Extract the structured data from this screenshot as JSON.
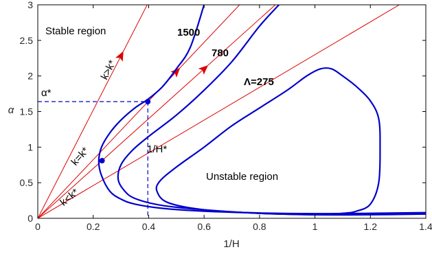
{
  "chart_data": {
    "type": "line",
    "title": "",
    "xlabel": "1/H",
    "ylabel": "α",
    "xlim": [
      0,
      1.4
    ],
    "ylim": [
      0,
      3
    ],
    "xticks": [
      "0",
      "0.2",
      "0.4",
      "0.6",
      "0.8",
      "1",
      "1.2",
      "1.4"
    ],
    "yticks": [
      "0",
      "0.5",
      "1",
      "1.5",
      "2",
      "2.5",
      "3"
    ],
    "grid": false,
    "colors": {
      "curve": "#0000cc",
      "ray": "#dd0000",
      "frame": "#000000"
    },
    "series": [
      {
        "name": "1500",
        "label_text": "1500",
        "x": [
          1.4,
          1.2,
          1.0,
          0.8,
          0.6,
          0.45,
          0.35,
          0.3,
          0.26,
          0.23,
          0.22,
          0.23,
          0.26,
          0.3,
          0.35,
          0.4,
          0.45,
          0.5,
          0.55,
          0.6
        ],
        "y": [
          0.08,
          0.07,
          0.065,
          0.075,
          0.1,
          0.14,
          0.2,
          0.27,
          0.38,
          0.6,
          0.8,
          1.0,
          1.2,
          1.38,
          1.55,
          1.68,
          1.85,
          2.1,
          2.4,
          3.0
        ]
      },
      {
        "name": "780",
        "label_text": "780",
        "x": [
          1.4,
          1.2,
          1.0,
          0.8,
          0.6,
          0.45,
          0.35,
          0.31,
          0.29,
          0.3,
          0.34,
          0.4,
          0.5,
          0.6,
          0.7,
          0.8,
          0.87
        ],
        "y": [
          0.06,
          0.05,
          0.05,
          0.07,
          0.12,
          0.18,
          0.28,
          0.4,
          0.55,
          0.75,
          0.95,
          1.15,
          1.45,
          1.8,
          2.2,
          2.7,
          3.0
        ]
      },
      {
        "name": "Λ=275",
        "label_text": "Λ=275",
        "x": [
          1.0,
          0.8,
          0.6,
          0.47,
          0.43,
          0.44,
          0.5,
          0.6,
          0.7,
          0.8,
          0.9,
          0.97,
          1.02,
          1.06,
          1.1,
          1.15,
          1.2,
          1.23,
          1.235,
          1.23,
          1.2,
          1.15,
          1.1,
          1.0
        ],
        "y": [
          0.05,
          0.07,
          0.12,
          0.22,
          0.38,
          0.52,
          0.72,
          1.0,
          1.3,
          1.55,
          1.8,
          2.0,
          2.1,
          2.1,
          2.0,
          1.85,
          1.65,
          1.4,
          1.0,
          0.5,
          0.2,
          0.1,
          0.07,
          0.05
        ]
      }
    ],
    "rays": [
      {
        "label": "k>k*",
        "slope": 7.6,
        "x_end": 0.395,
        "arrow_x": 0.3
      },
      {
        "label": "k=k*",
        "slope": 4.12,
        "x_end": 0.73,
        "arrow_x": 0.5
      },
      {
        "label": "k=k*",
        "slope": 3.5,
        "x_end": 0.86,
        "arrow_x": 0.6
      },
      {
        "label": "k<k*",
        "slope": 2.3,
        "x_end": 1.305,
        "arrow_x": null
      }
    ],
    "points": [
      {
        "x": 0.232,
        "y": 0.81
      },
      {
        "x": 0.397,
        "y": 1.64
      }
    ],
    "guides": {
      "alpha_star": 1.64,
      "inv_h_star": 0.397
    },
    "annotations": {
      "stable_region": "Stable region",
      "unstable_region": "Unstable region",
      "alpha_star": "α*",
      "inv_h_star": "1/H*",
      "k_gt": "k>k*",
      "k_eq": "k=k*",
      "k_lt": "k<k*"
    }
  }
}
